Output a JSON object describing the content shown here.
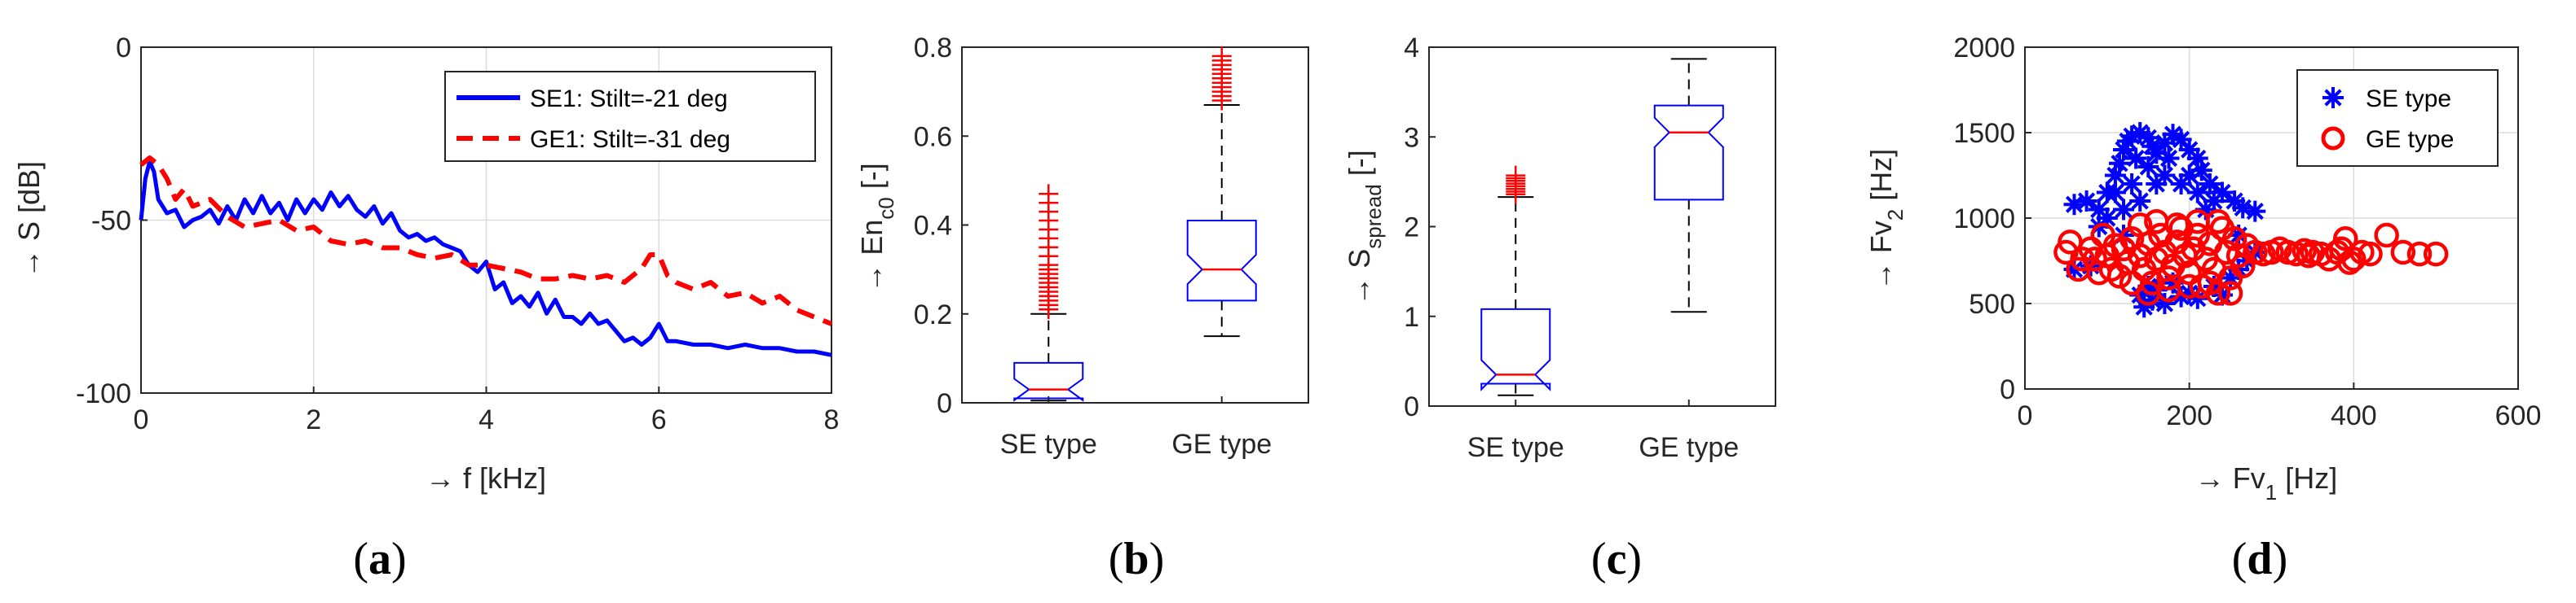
{
  "colors": {
    "se": "#0000ff",
    "ge": "#ff0000",
    "axis": "#262626",
    "grid": "#dcdcdc"
  },
  "chart_data": [
    {
      "panel": "(a)",
      "type": "line",
      "xlabel": "→ f [kHz]",
      "ylabel": "→ S [dB]",
      "xlim": [
        0,
        8
      ],
      "ylim": [
        -100,
        0
      ],
      "xticks": [
        "0",
        "2",
        "4",
        "6",
        "8"
      ],
      "yticks": [
        "0",
        "-50",
        "-100"
      ],
      "grid": true,
      "legend_position": "top-right",
      "series": [
        {
          "name": "SE1: Stilt=-21 deg",
          "style": "solid",
          "color": "#0000ff",
          "x": [
            0,
            0.05,
            0.1,
            0.15,
            0.2,
            0.3,
            0.4,
            0.5,
            0.6,
            0.7,
            0.8,
            0.9,
            1.0,
            1.1,
            1.2,
            1.3,
            1.4,
            1.5,
            1.6,
            1.7,
            1.8,
            1.9,
            2.0,
            2.1,
            2.2,
            2.3,
            2.4,
            2.5,
            2.6,
            2.7,
            2.8,
            2.9,
            3.0,
            3.1,
            3.2,
            3.3,
            3.4,
            3.5,
            3.6,
            3.7,
            3.8,
            3.9,
            4.0,
            4.1,
            4.2,
            4.3,
            4.4,
            4.5,
            4.6,
            4.7,
            4.8,
            4.9,
            5.0,
            5.1,
            5.2,
            5.3,
            5.4,
            5.5,
            5.6,
            5.7,
            5.8,
            5.9,
            6.0,
            6.1,
            6.2,
            6.4,
            6.6,
            6.8,
            7.0,
            7.2,
            7.4,
            7.6,
            7.8,
            8.0
          ],
          "y": [
            -50,
            -38,
            -33,
            -36,
            -44,
            -48,
            -47,
            -52,
            -50,
            -49,
            -47,
            -51,
            -46,
            -50,
            -44,
            -48,
            -43,
            -48,
            -45,
            -50,
            -44,
            -48,
            -44,
            -47,
            -42,
            -46,
            -43,
            -47,
            -49,
            -46,
            -51,
            -48,
            -53,
            -55,
            -54,
            -56,
            -55,
            -57,
            -58,
            -59,
            -63,
            -65,
            -62,
            -70,
            -68,
            -74,
            -72,
            -75,
            -71,
            -77,
            -73,
            -78,
            -78,
            -80,
            -77,
            -80,
            -79,
            -82,
            -85,
            -84,
            -86,
            -84,
            -80,
            -85,
            -85,
            -86,
            -86,
            -87,
            -86,
            -87,
            -87,
            -88,
            -88,
            -89
          ]
        },
        {
          "name": "GE1: Stilt=-31 deg",
          "style": "dashed",
          "color": "#ff0000",
          "x": [
            0,
            0.1,
            0.2,
            0.3,
            0.4,
            0.5,
            0.6,
            0.8,
            1.0,
            1.2,
            1.4,
            1.6,
            1.8,
            2.0,
            2.2,
            2.4,
            2.6,
            2.8,
            3.0,
            3.2,
            3.4,
            3.6,
            3.8,
            4.0,
            4.2,
            4.4,
            4.6,
            4.8,
            5.0,
            5.2,
            5.4,
            5.6,
            5.8,
            5.9,
            6.0,
            6.1,
            6.2,
            6.4,
            6.6,
            6.8,
            7.0,
            7.2,
            7.4,
            7.6,
            7.8,
            8.0
          ],
          "y": [
            -34,
            -32,
            -34,
            -38,
            -44,
            -41,
            -46,
            -44,
            -49,
            -52,
            -51,
            -50,
            -53,
            -52,
            -56,
            -57,
            -56,
            -58,
            -58,
            -60,
            -61,
            -60,
            -63,
            -63,
            -64,
            -65,
            -67,
            -67,
            -66,
            -67,
            -66,
            -68,
            -64,
            -60,
            -60,
            -66,
            -68,
            -70,
            -68,
            -72,
            -71,
            -74,
            -72,
            -76,
            -78,
            -80
          ]
        }
      ]
    },
    {
      "panel": "(b)",
      "type": "box",
      "xlabel": "",
      "ylabel": "→ En",
      "ylabel_sub": "c0",
      "ylabel_tail": " [-]",
      "ylim": [
        0,
        0.8
      ],
      "yticks": [
        "0",
        "0.2",
        "0.4",
        "0.6",
        "0.8"
      ],
      "categories": [
        "SE type",
        "GE type"
      ],
      "boxes": [
        {
          "min": 0.005,
          "q1": 0.01,
          "median": 0.03,
          "q3": 0.09,
          "whisker_high": 0.2,
          "outliers": [
            0.21,
            0.22,
            0.23,
            0.24,
            0.25,
            0.26,
            0.27,
            0.28,
            0.29,
            0.3,
            0.31,
            0.33,
            0.35,
            0.37,
            0.39,
            0.41,
            0.43,
            0.45,
            0.47
          ]
        },
        {
          "min": 0.15,
          "q1": 0.23,
          "median": 0.3,
          "q3": 0.41,
          "whisker_high": 0.67,
          "outliers": [
            0.68,
            0.69,
            0.7,
            0.71,
            0.72,
            0.73,
            0.74,
            0.75,
            0.76,
            0.77,
            0.78
          ]
        }
      ]
    },
    {
      "panel": "(c)",
      "type": "box",
      "xlabel": "",
      "ylabel": "→ S",
      "ylabel_sub": "spread",
      "ylabel_tail": " [-]",
      "ylim": [
        0,
        4
      ],
      "yticks": [
        "0",
        "1",
        "2",
        "3",
        "4"
      ],
      "categories": [
        "SE type",
        "GE type"
      ],
      "boxes": [
        {
          "min": 0.12,
          "q1": 0.25,
          "median": 0.35,
          "q3": 1.08,
          "whisker_high": 2.33,
          "outliers": [
            2.36,
            2.39,
            2.42,
            2.45,
            2.48,
            2.51,
            2.54,
            2.57
          ]
        },
        {
          "min": 1.05,
          "q1": 2.3,
          "median": 3.05,
          "q3": 3.35,
          "whisker_high": 3.87,
          "outliers": []
        }
      ]
    },
    {
      "panel": "(d)",
      "type": "scatter",
      "xlabel": "→ Fv",
      "xlabel_sub": "1",
      "xlabel_tail": " [Hz]",
      "ylabel": "→ Fv",
      "ylabel_sub": "2",
      "ylabel_tail": " [Hz]",
      "xlim": [
        0,
        600
      ],
      "ylim": [
        0,
        2000
      ],
      "xticks": [
        "0",
        "200",
        "400",
        "600"
      ],
      "yticks": [
        "0",
        "500",
        "1000",
        "1500",
        "2000"
      ],
      "grid": true,
      "legend_position": "top-right",
      "series": [
        {
          "name": "SE type",
          "marker": "asterisk",
          "color": "#0000ff",
          "points": [
            [
              60,
              1080
            ],
            [
              75,
              1100
            ],
            [
              90,
              1050
            ],
            [
              100,
              1150
            ],
            [
              110,
              1250
            ],
            [
              115,
              1320
            ],
            [
              120,
              1400
            ],
            [
              125,
              1450
            ],
            [
              130,
              1480
            ],
            [
              140,
              1500
            ],
            [
              150,
              1470
            ],
            [
              155,
              1420
            ],
            [
              160,
              1380
            ],
            [
              170,
              1440
            ],
            [
              180,
              1490
            ],
            [
              190,
              1460
            ],
            [
              200,
              1400
            ],
            [
              210,
              1350
            ],
            [
              215,
              1280
            ],
            [
              225,
              1200
            ],
            [
              240,
              1150
            ],
            [
              255,
              1100
            ],
            [
              265,
              1060
            ],
            [
              280,
              1040
            ],
            [
              110,
              1150
            ],
            [
              130,
              1200
            ],
            [
              150,
              1300
            ],
            [
              170,
              1250
            ],
            [
              190,
              1200
            ],
            [
              210,
              1150
            ],
            [
              230,
              1100
            ],
            [
              135,
              1350
            ],
            [
              175,
              1350
            ],
            [
              160,
              1200
            ],
            [
              200,
              1250
            ],
            [
              140,
              1100
            ],
            [
              220,
              1050
            ],
            [
              100,
              1000
            ],
            [
              120,
              1050
            ],
            [
              150,
              600
            ],
            [
              140,
              550
            ],
            [
              145,
              480
            ],
            [
              155,
              520
            ],
            [
              160,
              580
            ],
            [
              180,
              620
            ],
            [
              200,
              560
            ],
            [
              230,
              600
            ],
            [
              250,
              650
            ],
            [
              260,
              700
            ],
            [
              240,
              550
            ],
            [
              170,
              500
            ],
            [
              190,
              540
            ],
            [
              210,
              530
            ],
            [
              60,
              700
            ],
            [
              80,
              720
            ],
            [
              270,
              750
            ],
            [
              280,
              800
            ],
            [
              260,
              900
            ],
            [
              120,
              900
            ],
            [
              90,
              950
            ]
          ]
        },
        {
          "name": "GE type",
          "marker": "circle",
          "color": "#ff0000",
          "points": [
            [
              50,
              800
            ],
            [
              55,
              860
            ],
            [
              65,
              700
            ],
            [
              70,
              760
            ],
            [
              80,
              820
            ],
            [
              85,
              760
            ],
            [
              90,
              680
            ],
            [
              95,
              900
            ],
            [
              100,
              780
            ],
            [
              105,
              700
            ],
            [
              110,
              840
            ],
            [
              120,
              820
            ],
            [
              125,
              740
            ],
            [
              130,
              880
            ],
            [
              140,
              780
            ],
            [
              145,
              700
            ],
            [
              150,
              850
            ],
            [
              155,
              620
            ],
            [
              160,
              760
            ],
            [
              165,
              900
            ],
            [
              170,
              800
            ],
            [
              175,
              650
            ],
            [
              180,
              720
            ],
            [
              185,
              860
            ],
            [
              190,
              940
            ],
            [
              195,
              780
            ],
            [
              200,
              680
            ],
            [
              205,
              820
            ],
            [
              210,
              900
            ],
            [
              215,
              600
            ],
            [
              220,
              760
            ],
            [
              225,
              850
            ],
            [
              230,
              700
            ],
            [
              235,
              560
            ],
            [
              240,
              940
            ],
            [
              245,
              800
            ],
            [
              250,
              650
            ],
            [
              255,
              880
            ],
            [
              260,
              780
            ],
            [
              265,
              720
            ],
            [
              270,
              840
            ],
            [
              280,
              800
            ],
            [
              290,
              790
            ],
            [
              300,
              800
            ],
            [
              310,
              820
            ],
            [
              320,
              800
            ],
            [
              330,
              790
            ],
            [
              340,
              810
            ],
            [
              345,
              780
            ],
            [
              350,
              800
            ],
            [
              360,
              790
            ],
            [
              370,
              760
            ],
            [
              380,
              800
            ],
            [
              385,
              820
            ],
            [
              390,
              880
            ],
            [
              395,
              740
            ],
            [
              400,
              760
            ],
            [
              410,
              800
            ],
            [
              420,
              790
            ],
            [
              440,
              900
            ],
            [
              460,
              800
            ],
            [
              480,
              790
            ],
            [
              500,
              790
            ],
            [
              130,
              620
            ],
            [
              150,
              560
            ],
            [
              175,
              580
            ],
            [
              200,
              600
            ],
            [
              225,
              620
            ],
            [
              250,
              560
            ],
            [
              115,
              660
            ],
            [
              140,
              960
            ],
            [
              160,
              980
            ],
            [
              185,
              960
            ],
            [
              210,
              980
            ],
            [
              235,
              980
            ]
          ]
        }
      ]
    }
  ]
}
